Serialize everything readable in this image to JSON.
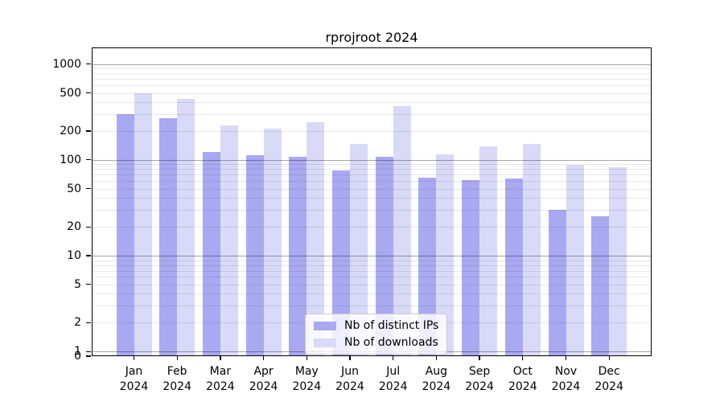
{
  "title": "rprojroot 2024",
  "colors": {
    "bar_distinct_ips": "#a9a9f2",
    "bar_downloads": "#d9d9f8",
    "major_grid": "rgba(0,0,0,0.35)",
    "minor_grid": "rgba(0,0,0,0.095)",
    "axis": "#000000",
    "legend_border": "#cccccc"
  },
  "legend": {
    "items": [
      {
        "label": "Nb of distinct IPs",
        "color": "#a9a9f2"
      },
      {
        "label": "Nb of downloads",
        "color": "#d9d9f8"
      }
    ]
  },
  "chart_data": {
    "type": "bar",
    "title": "rprojroot 2024",
    "categories": [
      "Jan 2024",
      "Feb 2024",
      "Mar 2024",
      "Apr 2024",
      "May 2024",
      "Jun 2024",
      "Jul 2024",
      "Aug 2024",
      "Sep 2024",
      "Oct 2024",
      "Nov 2024",
      "Dec 2024"
    ],
    "series": [
      {
        "name": "Nb of distinct IPs",
        "color": "#a9a9f2",
        "values": [
          300,
          270,
          120,
          113,
          107,
          78,
          107,
          65,
          62,
          64,
          30,
          26
        ]
      },
      {
        "name": "Nb of downloads",
        "color": "#d9d9f8",
        "values": [
          500,
          430,
          230,
          212,
          246,
          148,
          363,
          115,
          138,
          148,
          88,
          83
        ]
      }
    ],
    "xlabel": "",
    "ylabel": "",
    "yscale": "log-with-zero",
    "yticks": [
      0,
      1,
      2,
      5,
      10,
      20,
      50,
      100,
      200,
      500,
      1000
    ],
    "ylim": [
      0,
      1500
    ],
    "grid": "major+minor horizontal",
    "legend_position": "inside lower center"
  }
}
